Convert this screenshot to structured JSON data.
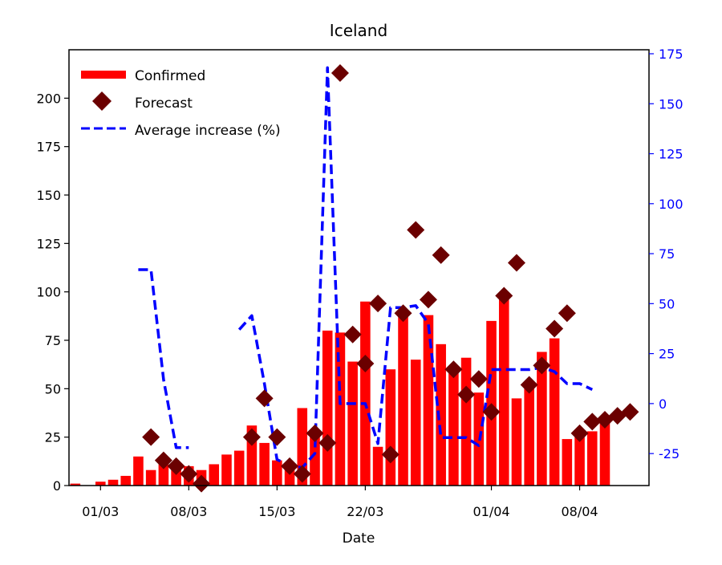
{
  "chart_data": {
    "type": "bar",
    "title": "Iceland",
    "xlabel": "Date",
    "ylabel": "",
    "y2label": "",
    "x_tick_labels": [
      "01/03",
      "08/03",
      "15/03",
      "22/03",
      "01/04",
      "08/04"
    ],
    "x_tick_dates": [
      "2020-03-01",
      "2020-03-08",
      "2020-03-15",
      "2020-03-22",
      "2020-04-01",
      "2020-04-08"
    ],
    "ylim": [
      0,
      225
    ],
    "y_ticks": [
      0,
      25,
      50,
      75,
      100,
      125,
      150,
      175,
      200
    ],
    "y2lim": [
      -41,
      177
    ],
    "y2_ticks": [
      -25,
      0,
      25,
      50,
      75,
      100,
      125,
      150,
      175
    ],
    "xlim": [
      "2020-02-28",
      "2020-04-13"
    ],
    "legend_position": "top-left",
    "grid": false,
    "colors": {
      "confirmed": "#ff0000",
      "forecast": "#6b0000",
      "average": "#0000ff",
      "y2_axis": "#0000ff"
    },
    "series": [
      {
        "name": "Confirmed",
        "kind": "bar",
        "axis": "left",
        "x": [
          "2020-02-28",
          "2020-02-29",
          "2020-03-01",
          "2020-03-02",
          "2020-03-03",
          "2020-03-04",
          "2020-03-05",
          "2020-03-06",
          "2020-03-07",
          "2020-03-08",
          "2020-03-09",
          "2020-03-10",
          "2020-03-11",
          "2020-03-12",
          "2020-03-13",
          "2020-03-14",
          "2020-03-15",
          "2020-03-16",
          "2020-03-17",
          "2020-03-18",
          "2020-03-19",
          "2020-03-20",
          "2020-03-21",
          "2020-03-22",
          "2020-03-23",
          "2020-03-24",
          "2020-03-25",
          "2020-03-26",
          "2020-03-27",
          "2020-03-28",
          "2020-03-29",
          "2020-03-30",
          "2020-03-31",
          "2020-04-01",
          "2020-04-02",
          "2020-04-03",
          "2020-04-04",
          "2020-04-05",
          "2020-04-06",
          "2020-04-07",
          "2020-04-08",
          "2020-04-09",
          "2020-04-10",
          "2020-04-11",
          "2020-04-12"
        ],
        "values": [
          1,
          0,
          2,
          3,
          5,
          15,
          8,
          12,
          11,
          10,
          8,
          11,
          16,
          18,
          31,
          22,
          13,
          10,
          40,
          26,
          80,
          79,
          64,
          95,
          20,
          60,
          90,
          65,
          88,
          73,
          60,
          66,
          48,
          85,
          97,
          45,
          52,
          69,
          76,
          24,
          25,
          28,
          33,
          0,
          0
        ]
      },
      {
        "name": "Forecast",
        "kind": "scatter",
        "axis": "left",
        "x": [
          "2020-03-05",
          "2020-03-06",
          "2020-03-07",
          "2020-03-08",
          "2020-03-09",
          "2020-03-13",
          "2020-03-14",
          "2020-03-15",
          "2020-03-16",
          "2020-03-17",
          "2020-03-18",
          "2020-03-19",
          "2020-03-20",
          "2020-03-21",
          "2020-03-22",
          "2020-03-23",
          "2020-03-24",
          "2020-03-25",
          "2020-03-26",
          "2020-03-27",
          "2020-03-28",
          "2020-03-29",
          "2020-03-30",
          "2020-03-31",
          "2020-04-01",
          "2020-04-02",
          "2020-04-03",
          "2020-04-04",
          "2020-04-05",
          "2020-04-06",
          "2020-04-07",
          "2020-04-08",
          "2020-04-09",
          "2020-04-10",
          "2020-04-11",
          "2020-04-12"
        ],
        "values": [
          25,
          13,
          10,
          6,
          1,
          25,
          45,
          25,
          10,
          6,
          27,
          22,
          213,
          78,
          63,
          94,
          16,
          89,
          132,
          96,
          119,
          60,
          47,
          55,
          38,
          98,
          115,
          52,
          62,
          81,
          89,
          27,
          33,
          34,
          36,
          38
        ]
      },
      {
        "name": "Average increase (%)",
        "kind": "line",
        "style": "dashed",
        "axis": "right",
        "segments": [
          {
            "x": [
              "2020-03-04",
              "2020-03-05",
              "2020-03-06",
              "2020-03-07",
              "2020-03-08"
            ],
            "values": [
              67,
              67,
              12,
              -22,
              -22
            ]
          },
          {
            "x": [
              "2020-03-12",
              "2020-03-13",
              "2020-03-14",
              "2020-03-15",
              "2020-03-16",
              "2020-03-17",
              "2020-03-18",
              "2020-03-19",
              "2020-03-20",
              "2020-03-21",
              "2020-03-22",
              "2020-03-23",
              "2020-03-24",
              "2020-03-25",
              "2020-03-26",
              "2020-03-27",
              "2020-03-28",
              "2020-03-29",
              "2020-03-30",
              "2020-03-31",
              "2020-04-01",
              "2020-04-02",
              "2020-04-03",
              "2020-04-04",
              "2020-04-05",
              "2020-04-06",
              "2020-04-07",
              "2020-04-08",
              "2020-04-09"
            ],
            "values": [
              37,
              44,
              10,
              -28,
              -31,
              -32,
              -25,
              168,
              0,
              0,
              0,
              -20,
              48,
              48,
              49,
              40,
              -17,
              -17,
              -17,
              -21,
              17,
              17,
              17,
              17,
              18,
              16,
              10,
              10,
              7
            ]
          }
        ]
      }
    ]
  }
}
